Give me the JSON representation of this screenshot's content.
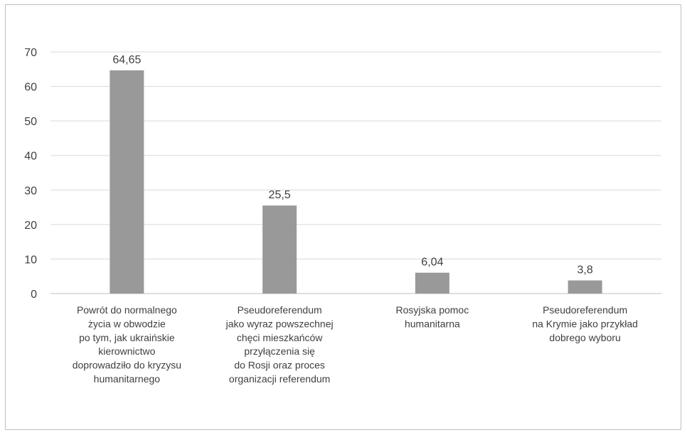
{
  "chart_data": {
    "type": "bar",
    "title": "",
    "xlabel": "",
    "ylabel": "",
    "ylim": [
      0,
      70
    ],
    "yticks": [
      0,
      10,
      20,
      30,
      40,
      50,
      60,
      70
    ],
    "grid": true,
    "categories": [
      [
        "Powrót do normalnego",
        "życia w obwodzie",
        "po tym, jak ukraińskie",
        "kierownictwo",
        "doprowadziło do kryzysu",
        "humanitarnego"
      ],
      [
        "Pseudoreferendum",
        "jako wyraz powszechnej",
        "chęci mieszkańców",
        "przyłączenia się",
        "do Rosji oraz proces",
        "organizacji referendum"
      ],
      [
        "Rosyjska pomoc",
        "humanitarna"
      ],
      [
        "Pseudoreferendum",
        "na Krymie jako przykład",
        "dobrego wyboru"
      ]
    ],
    "values": [
      64.65,
      25.5,
      6.04,
      3.8
    ],
    "value_labels": [
      "64,65",
      "25,5",
      "6,04",
      "3,8"
    ],
    "colors": {
      "bar": "#999999",
      "grid": "#d9d9d9",
      "axis": "#bfbfbf",
      "text": "#404040"
    }
  }
}
